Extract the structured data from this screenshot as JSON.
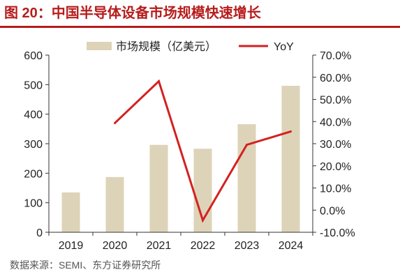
{
  "figure": {
    "title": "图 20：中国半导体设备市场规模快速增长",
    "source": "数据来源：SEMI、东方证券研究所"
  },
  "chart_data": {
    "type": "bar",
    "categories": [
      "2019",
      "2020",
      "2021",
      "2022",
      "2023",
      "2024"
    ],
    "series": [
      {
        "name": "市场规模（亿美元）",
        "type": "bar",
        "axis": "left",
        "values": [
          135,
          187,
          296,
          283,
          366,
          496
        ]
      },
      {
        "name": "YoY",
        "type": "line",
        "axis": "right",
        "values": [
          null,
          39.3,
          58.2,
          -4.6,
          29.5,
          35.5
        ]
      }
    ],
    "y_left": {
      "range": [
        0,
        600
      ],
      "ticks": [
        "0",
        "100",
        "200",
        "300",
        "400",
        "500",
        "600"
      ]
    },
    "y_right": {
      "range": [
        -10,
        70
      ],
      "ticks": [
        "-10.0%",
        "0.0%",
        "10.0%",
        "20.0%",
        "30.0%",
        "40.0%",
        "50.0%",
        "60.0%",
        "70.0%"
      ]
    },
    "legend_position": "top",
    "grid": false,
    "colors": {
      "bar": "#ddd3b8",
      "line": "#d42020",
      "axis": "#333333"
    }
  }
}
